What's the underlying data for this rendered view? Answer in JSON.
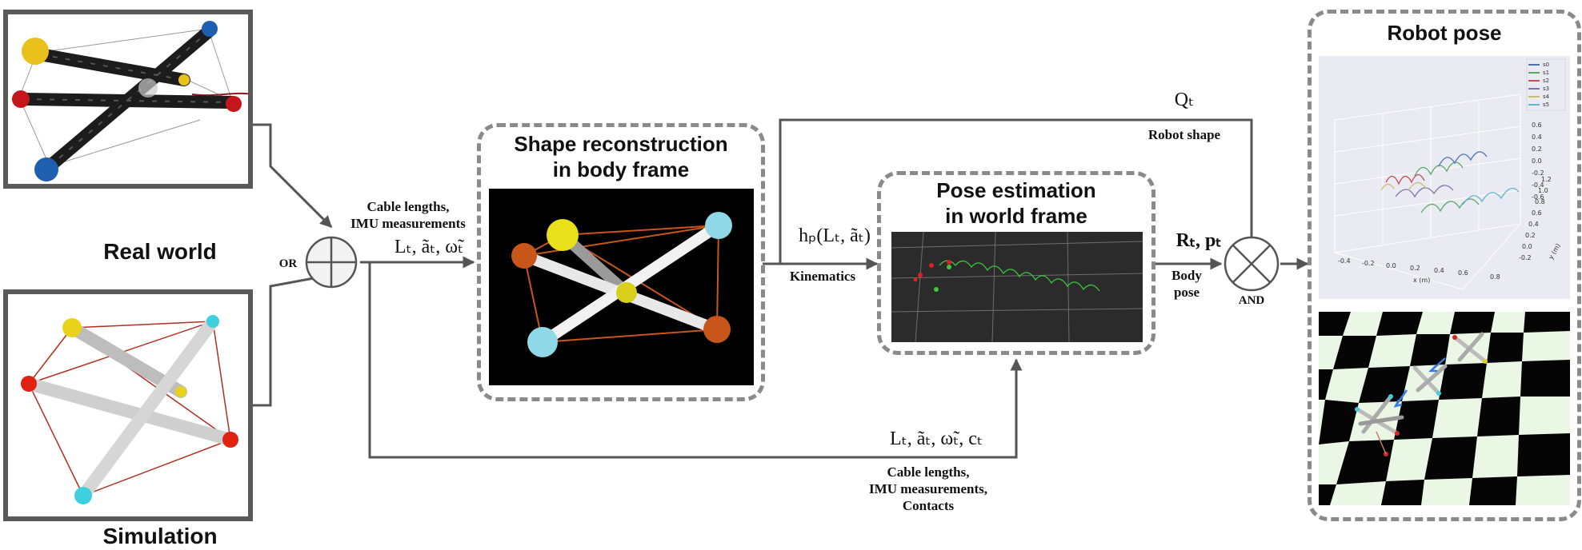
{
  "panels": {
    "real_world": "Real world",
    "simulation": "Simulation",
    "shape_reconstruction": [
      "Shape reconstruction",
      "in body frame"
    ],
    "pose_estimation": [
      "Pose estimation",
      "in world frame"
    ],
    "robot_pose": "Robot pose"
  },
  "operators": {
    "or": "OR",
    "and": "AND"
  },
  "labels": {
    "cable_imu": [
      "Cable lengths,",
      "IMU measurements"
    ],
    "inputs_math": "Lₜ, ãₜ, ω̃ₜ",
    "kinematics_math": "hₚ(Lₜ, ãₜ)",
    "kinematics": "Kinematics",
    "shape_math": "Qₜ",
    "robot_shape": "Robot shape",
    "pose_math": "Rₜ, pₜ",
    "body_pose": [
      "Body",
      "pose"
    ],
    "bottom_math": "Lₜ, ãₜ, ω̃ₜ, cₜ",
    "bottom_text": [
      "Cable lengths,",
      "IMU measurements,",
      "Contacts"
    ]
  },
  "plot3d": {
    "legend": [
      "s0",
      "s1",
      "s2",
      "s3",
      "s4",
      "s5"
    ],
    "legend_colors": [
      "#4c72b0",
      "#55a868",
      "#c44e52",
      "#8172b2",
      "#ccb974",
      "#64b5cd"
    ],
    "x_ticks": [
      "-0.4",
      "-0.2",
      "0.0",
      "0.2",
      "0.4",
      "0.6"
    ],
    "x_label": "x (m)",
    "y_ticks": [
      "-0.2",
      "0.0",
      "0.2",
      "0.4",
      "0.6",
      "0.8",
      "1.0",
      "1.2"
    ],
    "y_label": "y (m)",
    "z_ticks": [
      "0.6",
      "0.4",
      "0.2",
      "0.0",
      "-0.2",
      "-0.4",
      "-0.6"
    ],
    "x_tick_0_8": "0.8"
  },
  "colors": {
    "arrow": "#555555",
    "dash": "#8a8a8a",
    "cap_yellow": "#e8c21a",
    "cap_red": "#c4161c",
    "cap_blue": "#1f5fb0",
    "cap_orange": "#c8561a",
    "cap_cyan": "#3fd0e0"
  }
}
